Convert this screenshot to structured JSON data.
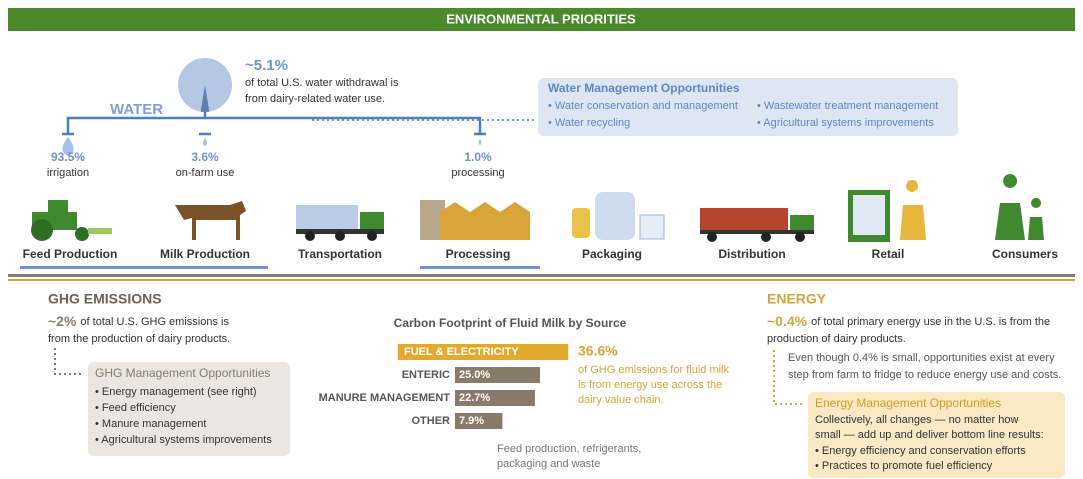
{
  "header": {
    "title": "ENVIRONMENTAL PRIORITIES"
  },
  "water": {
    "label": "WATER",
    "share": "~5.1%",
    "share_value": 5.1,
    "description": [
      "of total U.S. water withdrawal is",
      "from dairy-related water use."
    ],
    "uses": [
      {
        "value": "93.5%",
        "label": "irrigation"
      },
      {
        "value": "3.6%",
        "label": "on-farm use"
      },
      {
        "value": "1.0%",
        "label": "processing"
      }
    ],
    "opportunities": {
      "title": "Water Management Opportunities",
      "items": [
        "• Water conservation and management",
        "• Water recycling",
        "• Wastewater treatment management",
        "• Agricultural systems improvements"
      ]
    }
  },
  "stages": [
    "Feed Production",
    "Milk Production",
    "Transportation",
    "Processing",
    "Packaging",
    "Distribution",
    "Retail",
    "Consumers"
  ],
  "ghg": {
    "title": "GHG EMISSIONS",
    "share": "~2%",
    "description": [
      "of total U.S. GHG emissions is",
      "from the production of dairy products."
    ],
    "opportunities": {
      "title": "GHG Management Opportunities",
      "items": [
        "• Energy management (see right)",
        "• Feed efficiency",
        "• Manure management",
        "• Agricultural systems improvements"
      ]
    }
  },
  "footprint": {
    "title": "Carbon Footprint of Fluid Milk by Source",
    "bars": [
      {
        "label": "FUEL & ELECTRICITY",
        "value": 36.6,
        "value_label": "36.6%"
      },
      {
        "label": "ENTERIC",
        "value": 25.0,
        "value_label": "25.0%"
      },
      {
        "label": "MANURE MANAGEMENT",
        "value": 22.7,
        "value_label": "22.7%"
      },
      {
        "label": "OTHER",
        "value": 7.9,
        "value_label": "7.9%"
      }
    ],
    "note": [
      "of GHG emissions for fluid milk",
      "is from energy use across the",
      "dairy value chain."
    ],
    "other_note": [
      "Feed production, refrigerants,",
      "packaging and waste"
    ]
  },
  "energy": {
    "title": "ENERGY",
    "share": "~0.4%",
    "description": [
      "of total primary energy use in the U.S. is from the",
      "production of dairy products."
    ],
    "detail": [
      "Even though 0.4% is small, opportunities exist at every",
      "step from farm to fridge to reduce energy use and costs."
    ],
    "opportunities": {
      "title": "Energy Management Opportunities",
      "lines": [
        "Collectively, all changes — no matter how",
        "small — add up and deliver bottom line results:",
        "• Energy efficiency and conservation efforts",
        "• Practices to promote fuel efficiency"
      ]
    }
  }
}
